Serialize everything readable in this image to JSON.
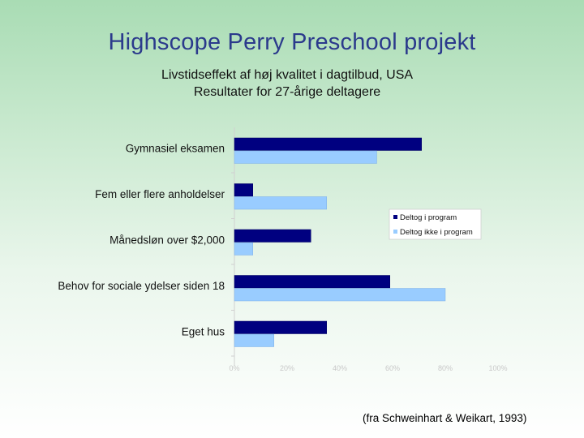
{
  "slide": {
    "title": "Highscope Perry Preschool projekt",
    "subtitle_line1": "Livstidseffekt af høj kvalitet i dagtilbud, USA",
    "subtitle_line2": "Resultater for 27-årige deltagere",
    "source": "(fra Schweinhart & Weikart, 1993)"
  },
  "chart_data": {
    "type": "bar",
    "orientation": "horizontal",
    "title": "",
    "xlabel": "",
    "ylabel": "",
    "xlim": [
      0,
      100
    ],
    "x_ticks": [
      "0%",
      "20%",
      "40%",
      "60%",
      "80%",
      "100%"
    ],
    "grid": false,
    "legend_position": "right",
    "categories": [
      "Gymnasiel eksamen",
      "Fem eller flere anholdelser",
      "Månedsløn over $2,000",
      "Behov for sociale ydelser siden 18",
      "Eget hus"
    ],
    "series": [
      {
        "name": "Deltog i program",
        "color": "#000080",
        "values": [
          71,
          7,
          29,
          59,
          35
        ]
      },
      {
        "name": "Deltog ikke i program",
        "color": "#99ccff",
        "values": [
          54,
          35,
          7,
          80,
          15
        ]
      }
    ]
  }
}
